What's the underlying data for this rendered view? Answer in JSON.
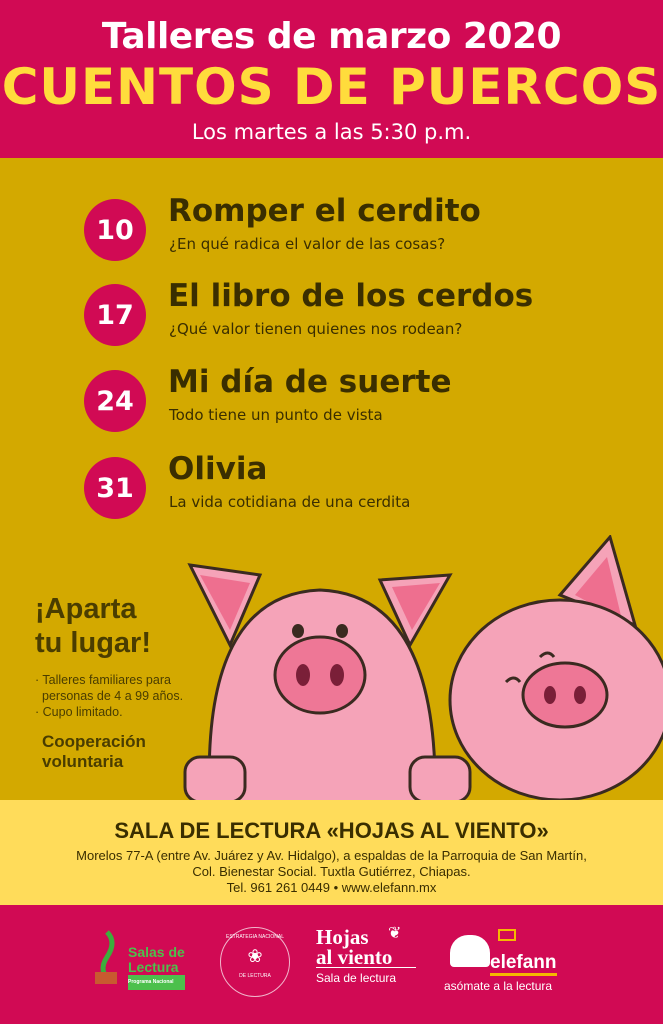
{
  "header": {
    "title": "Talleres de marzo 2020",
    "subtitle": "CUENTOS DE PUERCOS",
    "schedule": "Los martes a las 5:30 p.m."
  },
  "events": [
    {
      "day": "10",
      "title": "Romper el cerdito",
      "subtitle": "¿En qué radica el valor de las cosas?"
    },
    {
      "day": "17",
      "title": "El libro de los cerdos",
      "subtitle": "¿Qué valor tienen quienes nos rodean?"
    },
    {
      "day": "24",
      "title": "Mi día de suerte",
      "subtitle": "Todo tiene un punto de vista"
    },
    {
      "day": "31",
      "title": "Olivia",
      "subtitle": "La vida cotidiana de una cerdita"
    }
  ],
  "reserve": {
    "title_line1": "¡Aparta",
    "title_line2": "tu lugar!",
    "bullets": [
      "· Talleres familiares para",
      "  personas de 4 a 99 años.",
      "· Cupo limitado."
    ],
    "coop_line1": "Cooperación",
    "coop_line2": "voluntaria"
  },
  "venue": {
    "name": "SALA DE LECTURA «HOJAS AL VIENTO»",
    "address1": "Morelos 77-A (entre Av. Juárez y Av. Hidalgo), a espaldas de la Parroquia de San Martín,",
    "address2": "Col. Bienestar Social. Tuxtla Gutiérrez, Chiapas.",
    "contact": "Tel. 961 261 0449  •  www.elefann.mx"
  },
  "logos": {
    "salas": [
      "Salas de",
      "Lectura",
      "Programa Nacional"
    ],
    "estrategia": [
      "ESTRATEGIA NACIONAL",
      "DE LECTURA"
    ],
    "hojas": [
      "Hojas",
      "al viento",
      "Sala de lectura"
    ],
    "elefann": [
      "elefann",
      "asómate a la lectura"
    ]
  },
  "colors": {
    "magenta": "#d10a54",
    "gold": "#d3a900",
    "yellow": "#ffdc5a",
    "title_yellow": "#ffdc3c",
    "pig": "#f5a3b8"
  }
}
